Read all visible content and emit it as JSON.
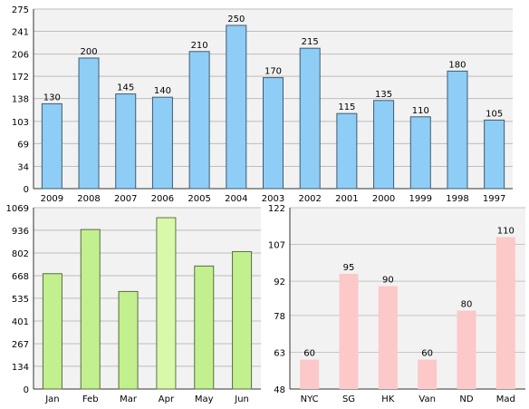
{
  "chart_data": [
    {
      "type": "bar",
      "categories": [
        "2009",
        "2008",
        "2007",
        "2006",
        "2005",
        "2004",
        "2003",
        "2002",
        "2001",
        "2000",
        "1999",
        "1998",
        "1997"
      ],
      "values": [
        130,
        200,
        145,
        140,
        210,
        250,
        170,
        215,
        115,
        135,
        110,
        180,
        105
      ],
      "yticks": [
        "0",
        "34",
        "69",
        "103",
        "138",
        "172",
        "206",
        "241",
        "275"
      ],
      "ylim": [
        0,
        275
      ],
      "grid": true,
      "color": "#8ecdf6",
      "title": "",
      "xlabel": "",
      "ylabel": ""
    },
    {
      "type": "bar",
      "categories": [
        "Jan",
        "Feb",
        "Mar",
        "Apr",
        "May",
        "Jun"
      ],
      "values": [
        680,
        940,
        575,
        1010,
        725,
        810
      ],
      "yticks": [
        "0",
        "134",
        "267",
        "401",
        "535",
        "668",
        "802",
        "936",
        "1069"
      ],
      "ylim": [
        0,
        1069
      ],
      "grid": true,
      "colors": [
        "#c3f08f",
        "#c3f08f",
        "#c3f08f",
        "#d8f9a8",
        "#c3f08f",
        "#c3f08f"
      ],
      "title": "",
      "xlabel": "",
      "ylabel": ""
    },
    {
      "type": "bar",
      "categories": [
        "NYC",
        "SG",
        "HK",
        "Van",
        "ND",
        "Mad"
      ],
      "values": [
        60,
        95,
        90,
        60,
        80,
        110
      ],
      "yticks": [
        "48",
        "63",
        "78",
        "92",
        "107",
        "122"
      ],
      "ylim": [
        48,
        122
      ],
      "grid": true,
      "color": "#fcc8c8",
      "title": "",
      "xlabel": "",
      "ylabel": ""
    }
  ]
}
